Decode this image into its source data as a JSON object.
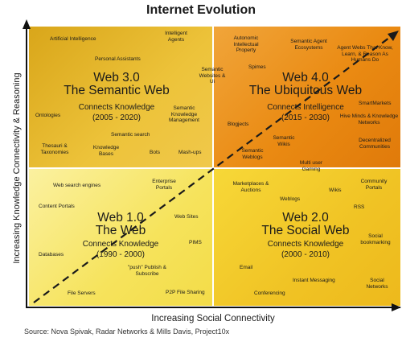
{
  "title": "Internet Evolution",
  "y_axis_label": "Increasing Knowledge Connectivity & Reasoning",
  "x_axis_label": "Increasing Social Connectivity",
  "source": "Source: Nova Spivak, Radar Networks & Mills Davis, Project10x",
  "quadrants": {
    "web30": {
      "title": "Web 3.0",
      "subtitle": "The Semantic Web",
      "connects": "Connects Knowledge",
      "years": "(2005 - 2020)",
      "items": [
        "Artificial Intelligence",
        "Intelligent Agents",
        "Personal Assistants",
        "Semantic Websites & Ui",
        "Ontologies",
        "Semantic Knowledge Management",
        "Semantic search",
        "Thesauri & Taxonomies",
        "Knowledge Bases",
        "Bots",
        "Mash-ups"
      ]
    },
    "web40": {
      "title": "Web 4.0",
      "subtitle": "The Ubiquitous Web",
      "connects": "Connects Intelligence",
      "years": "(2015 - 2030)",
      "items": [
        "Autonomic Intellectual Property",
        "Semantic Agent Ecosystems",
        "Agent Webs That Know, Learn, & Reason As Humans Do",
        "Spimes",
        "Blogjects",
        "SmartMarkets",
        "Hive Minds & Knowledge Networks",
        "Semantic Wikis",
        "Semantic Weblogs",
        "Decentralized Communities",
        "Multi user Gaming"
      ]
    },
    "web10": {
      "title": "Web 1.0",
      "subtitle": "The Web",
      "connects": "Connects Knowledge",
      "years": "(1990 - 2000)",
      "items": [
        "Web search engines",
        "Enterprise Portals",
        "Content Portals",
        "Web Sites",
        "PIMS",
        "Databases",
        "\"push\" Publish & Subscribe",
        "File Servers",
        "P2P File Sharing"
      ]
    },
    "web20": {
      "title": "Web 2.0",
      "subtitle": "The Social Web",
      "connects": "Connects Knowledge",
      "years": "(2000 - 2010)",
      "items": [
        "Marketplaces & Auctions",
        "Weblogs",
        "Wikis",
        "Community Portals",
        "RSS",
        "Social bookmarking",
        "Email",
        "Instant Messaging",
        "Social Networks",
        "Conferencing"
      ]
    }
  }
}
